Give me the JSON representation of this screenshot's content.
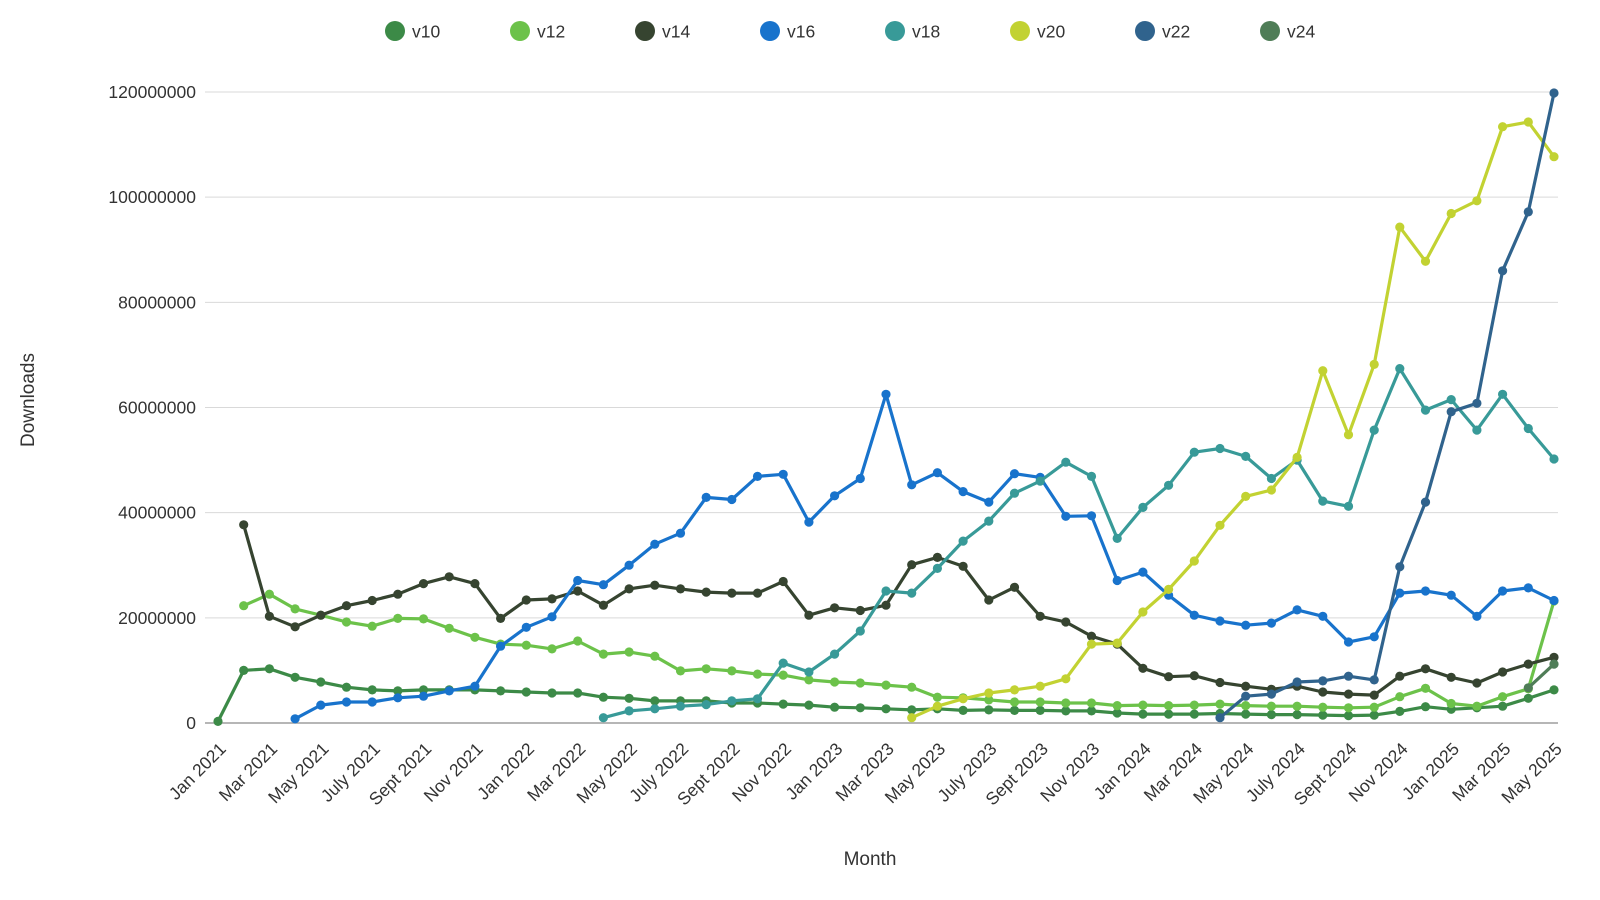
{
  "chart_data": {
    "type": "line",
    "title": "",
    "xlabel": "Month",
    "ylabel": "Downloads",
    "values_unit": "millions_of_downloads",
    "ylim": [
      0,
      120000000
    ],
    "y_ticks": [
      0,
      20000000,
      40000000,
      60000000,
      80000000,
      100000000,
      120000000
    ],
    "grid": true,
    "legend_position": "top",
    "x_tick_every": 2,
    "categories": [
      "Jan 2021",
      "Feb 2021",
      "Mar 2021",
      "Apr 2021",
      "May 2021",
      "June 2021",
      "July 2021",
      "Aug 2021",
      "Sept 2021",
      "Oct 2021",
      "Nov 2021",
      "Dec 2021",
      "Jan 2022",
      "Feb 2022",
      "Mar 2022",
      "Apr 2022",
      "May 2022",
      "June 2022",
      "July 2022",
      "Aug 2022",
      "Sept 2022",
      "Oct 2022",
      "Nov 2022",
      "Dec 2022",
      "Jan 2023",
      "Feb 2023",
      "Mar 2023",
      "Apr 2023",
      "May 2023",
      "June 2023",
      "July 2023",
      "Aug 2023",
      "Sept 2023",
      "Oct 2023",
      "Nov 2023",
      "Dec 2023",
      "Jan 2024",
      "Feb 2024",
      "Mar 2024",
      "Apr 2024",
      "May 2024",
      "June 2024",
      "July 2024",
      "Aug 2024",
      "Sept 2024",
      "Oct 2024",
      "Nov 2024",
      "Dec 2024",
      "Jan 2025",
      "Feb 2025",
      "Mar 2025",
      "Apr 2025",
      "May 2025"
    ],
    "series": [
      {
        "name": "v10",
        "color": "#3c8a47",
        "values_millions": [
          0.3,
          10.0,
          10.3,
          8.7,
          7.8,
          6.8,
          6.3,
          6.1,
          6.3,
          6.3,
          6.3,
          6.1,
          5.9,
          5.7,
          5.7,
          4.9,
          4.7,
          4.2,
          4.2,
          4.2,
          3.8,
          3.8,
          3.6,
          3.4,
          3.0,
          2.9,
          2.7,
          2.5,
          2.7,
          2.4,
          2.5,
          2.4,
          2.4,
          2.3,
          2.3,
          1.9,
          1.7,
          1.7,
          1.7,
          1.8,
          1.7,
          1.6,
          1.6,
          1.5,
          1.4,
          1.5,
          2.2,
          3.1,
          2.6,
          2.9,
          3.2,
          4.7,
          6.3
        ]
      },
      {
        "name": "v12",
        "color": "#6cc24a",
        "values_millions": [
          null,
          22.3,
          24.5,
          21.7,
          20.5,
          19.2,
          18.4,
          19.9,
          19.8,
          18.0,
          16.3,
          15.0,
          14.8,
          14.1,
          15.6,
          13.1,
          13.5,
          12.7,
          9.9,
          10.3,
          9.9,
          9.3,
          9.1,
          8.2,
          7.8,
          7.6,
          7.2,
          6.8,
          4.9,
          4.8,
          4.4,
          4.0,
          4.0,
          3.8,
          3.8,
          3.3,
          3.4,
          3.3,
          3.4,
          3.6,
          3.3,
          3.2,
          3.2,
          3.0,
          2.9,
          3.0,
          5.0,
          6.6,
          3.7,
          3.2,
          5.0,
          6.5,
          23.2
        ]
      },
      {
        "name": "v14",
        "color": "#364430",
        "values_millions": [
          null,
          37.7,
          20.3,
          18.3,
          20.5,
          22.3,
          23.3,
          24.5,
          26.5,
          27.8,
          26.5,
          19.9,
          23.4,
          23.6,
          25.1,
          22.4,
          25.5,
          26.2,
          25.5,
          24.9,
          24.7,
          24.7,
          26.9,
          20.5,
          21.9,
          21.4,
          22.4,
          30.1,
          31.5,
          29.8,
          23.4,
          25.8,
          20.3,
          19.2,
          16.5,
          15.0,
          10.4,
          8.8,
          9.0,
          7.7,
          7.0,
          6.4,
          7.0,
          5.9,
          5.5,
          5.3,
          8.9,
          10.3,
          8.7,
          7.6,
          9.7,
          11.2,
          12.5
        ]
      },
      {
        "name": "v16",
        "color": "#1873cc",
        "values_millions": [
          null,
          null,
          null,
          0.8,
          3.4,
          4.0,
          4.0,
          4.8,
          5.1,
          6.1,
          7.0,
          14.6,
          18.2,
          20.2,
          27.1,
          26.3,
          30.0,
          34.0,
          36.1,
          42.9,
          42.5,
          46.9,
          47.3,
          38.2,
          43.2,
          46.5,
          62.5,
          45.3,
          47.6,
          44.0,
          42.0,
          47.4,
          46.7,
          39.3,
          39.4,
          27.1,
          28.7,
          24.3,
          20.5,
          19.4,
          18.6,
          19.0,
          21.5,
          20.3,
          15.4,
          16.4,
          24.7,
          25.1,
          24.3,
          20.3,
          25.1,
          25.7,
          23.3
        ]
      },
      {
        "name": "v18",
        "color": "#389a98",
        "values_millions": [
          null,
          null,
          null,
          null,
          null,
          null,
          null,
          null,
          null,
          null,
          null,
          null,
          null,
          null,
          null,
          1.0,
          2.3,
          2.7,
          3.2,
          3.5,
          4.2,
          4.6,
          11.4,
          9.7,
          13.1,
          17.5,
          25.1,
          24.7,
          29.4,
          34.6,
          38.4,
          43.7,
          46.0,
          49.6,
          46.9,
          35.1,
          41.0,
          45.2,
          51.5,
          52.2,
          50.7,
          46.5,
          50.0,
          42.2,
          41.2,
          55.7,
          67.4,
          59.5,
          61.5,
          55.7,
          62.5,
          56.0,
          50.2
        ]
      },
      {
        "name": "v20",
        "color": "#c2d232",
        "values_millions": [
          null,
          null,
          null,
          null,
          null,
          null,
          null,
          null,
          null,
          null,
          null,
          null,
          null,
          null,
          null,
          null,
          null,
          null,
          null,
          null,
          null,
          null,
          null,
          null,
          null,
          null,
          null,
          1.0,
          3.2,
          4.6,
          5.7,
          6.3,
          7.0,
          8.4,
          15.0,
          15.2,
          21.1,
          25.4,
          30.8,
          37.6,
          43.1,
          44.3,
          50.5,
          67.0,
          54.8,
          68.2,
          94.3,
          87.8,
          96.9,
          99.3,
          113.4,
          114.3,
          107.7
        ]
      },
      {
        "name": "v22",
        "color": "#30638d",
        "values_millions": [
          null,
          null,
          null,
          null,
          null,
          null,
          null,
          null,
          null,
          null,
          null,
          null,
          null,
          null,
          null,
          null,
          null,
          null,
          null,
          null,
          null,
          null,
          null,
          null,
          null,
          null,
          null,
          null,
          null,
          null,
          null,
          null,
          null,
          null,
          null,
          null,
          null,
          null,
          null,
          1.0,
          5.1,
          5.5,
          7.8,
          8.0,
          8.9,
          8.2,
          29.7,
          42.0,
          59.2,
          60.8,
          86.0,
          97.2,
          119.8
        ]
      },
      {
        "name": "v24",
        "color": "#4f7d57",
        "values_millions": [
          null,
          null,
          null,
          null,
          null,
          null,
          null,
          null,
          null,
          null,
          null,
          null,
          null,
          null,
          null,
          null,
          null,
          null,
          null,
          null,
          null,
          null,
          null,
          null,
          null,
          null,
          null,
          null,
          null,
          null,
          null,
          null,
          null,
          null,
          null,
          null,
          null,
          null,
          null,
          null,
          null,
          null,
          null,
          null,
          null,
          null,
          null,
          null,
          null,
          null,
          null,
          6.7,
          11.2
        ]
      }
    ],
    "style": {
      "grid_color": "#d9d9d9",
      "axis_line_color": "#9e9e9e",
      "text_color": "#333333",
      "background": "#ffffff",
      "line_width": 3.2,
      "marker_radius": 4.6
    }
  }
}
